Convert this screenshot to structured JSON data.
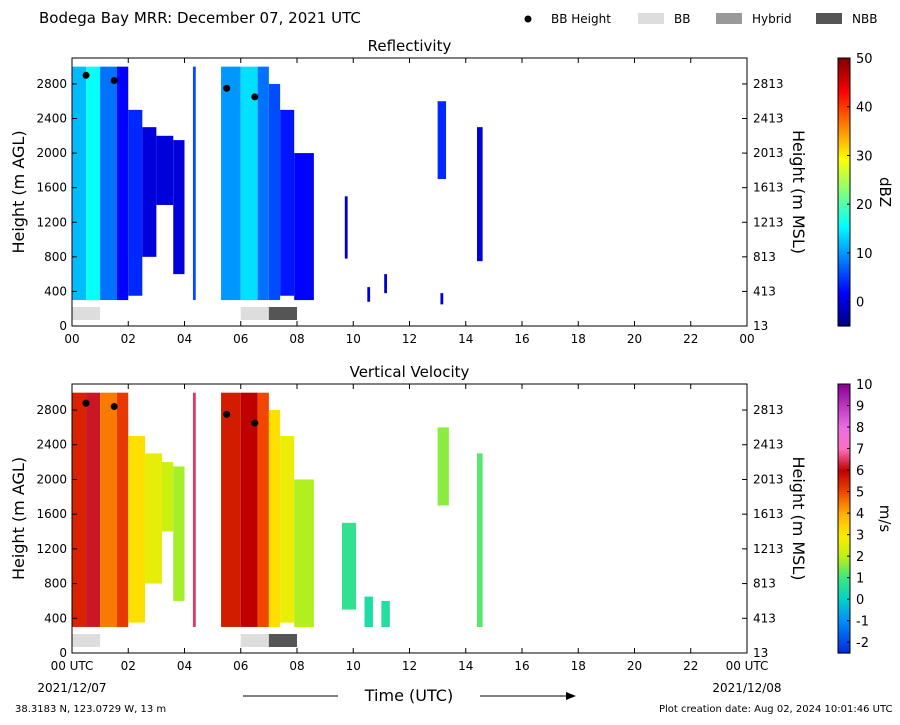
{
  "header": {
    "title": "Bodega Bay MRR:  December 07, 2021 UTC",
    "legend": [
      {
        "label": "BB Height",
        "kind": "dot",
        "color": "#000000"
      },
      {
        "label": "BB",
        "kind": "box",
        "color": "#dddddd"
      },
      {
        "label": "Hybrid",
        "kind": "box",
        "color": "#999999"
      },
      {
        "label": "NBB",
        "kind": "box",
        "color": "#555555"
      }
    ]
  },
  "footer": {
    "location": "38.3183 N, 123.0729 W, 13 m",
    "creation": "Plot creation date: Aug 02, 2024 10:01:46 UTC"
  },
  "axis": {
    "x_label": "Time (UTC)",
    "x_ticks": [
      "00",
      "02",
      "04",
      "06",
      "08",
      "10",
      "12",
      "14",
      "16",
      "18",
      "20",
      "22",
      "00"
    ],
    "x_ticks_bottom": [
      "00 UTC",
      "02",
      "04",
      "06",
      "08",
      "10",
      "12",
      "14",
      "16",
      "18",
      "20",
      "22",
      "00 UTC"
    ],
    "date_start": "2021/12/07",
    "date_end": "2021/12/08",
    "y_label_left": "Height (m AGL)",
    "y_label_right": "Height (m MSL)",
    "y_ticks_left": [
      "0",
      "400",
      "800",
      "1200",
      "1600",
      "2000",
      "2400",
      "2800"
    ],
    "y_ticks_right": [
      "13",
      "413",
      "813",
      "1213",
      "1613",
      "2013",
      "2413",
      "2813"
    ]
  },
  "chart_data": [
    {
      "type": "heatmap",
      "title": "Reflectivity",
      "xlim": [
        0,
        24
      ],
      "ylim": [
        0,
        3100
      ],
      "colorbar": {
        "label": "dBZ",
        "range": [
          -5,
          50
        ],
        "ticks": [
          "0",
          "10",
          "20",
          "30",
          "40",
          "50"
        ]
      },
      "bright_band_heights": [
        {
          "x": 0.5,
          "y": 2900
        },
        {
          "x": 1.5,
          "y": 2840
        },
        {
          "x": 5.5,
          "y": 2750
        },
        {
          "x": 6.5,
          "y": 2650
        }
      ],
      "echo_segments": [
        {
          "x": [
            0.0,
            0.5
          ],
          "y": [
            300,
            3000
          ],
          "value": 12
        },
        {
          "x": [
            0.5,
            1.0
          ],
          "y": [
            300,
            3000
          ],
          "value": 16
        },
        {
          "x": [
            1.0,
            1.6
          ],
          "y": [
            300,
            3000
          ],
          "value": 8
        },
        {
          "x": [
            1.6,
            2.0
          ],
          "y": [
            300,
            3000
          ],
          "value": 2
        },
        {
          "x": [
            2.0,
            2.5
          ],
          "y": [
            350,
            2500
          ],
          "value": 4
        },
        {
          "x": [
            2.5,
            3.0
          ],
          "y": [
            800,
            2300
          ],
          "value": 0
        },
        {
          "x": [
            3.0,
            3.6
          ],
          "y": [
            1400,
            2200
          ],
          "value": 0
        },
        {
          "x": [
            3.6,
            4.0
          ],
          "y": [
            600,
            2150
          ],
          "value": 0
        },
        {
          "x": [
            4.3,
            4.4
          ],
          "y": [
            300,
            3000
          ],
          "value": 6
        },
        {
          "x": [
            5.3,
            6.0
          ],
          "y": [
            300,
            3000
          ],
          "value": 10
        },
        {
          "x": [
            6.0,
            6.6
          ],
          "y": [
            300,
            3000
          ],
          "value": 14
        },
        {
          "x": [
            6.6,
            7.0
          ],
          "y": [
            300,
            3000
          ],
          "value": 8
        },
        {
          "x": [
            7.0,
            7.4
          ],
          "y": [
            300,
            2800
          ],
          "value": 6
        },
        {
          "x": [
            7.4,
            7.9
          ],
          "y": [
            350,
            2500
          ],
          "value": 3
        },
        {
          "x": [
            7.9,
            8.6
          ],
          "y": [
            300,
            2000
          ],
          "value": 2
        },
        {
          "x": [
            9.7,
            9.8
          ],
          "y": [
            780,
            1500
          ],
          "value": -1
        },
        {
          "x": [
            10.5,
            10.6
          ],
          "y": [
            280,
            450
          ],
          "value": 0
        },
        {
          "x": [
            11.1,
            11.2
          ],
          "y": [
            380,
            600
          ],
          "value": 0
        },
        {
          "x": [
            13.0,
            13.3
          ],
          "y": [
            1700,
            2600
          ],
          "value": 4
        },
        {
          "x": [
            13.1,
            13.2
          ],
          "y": [
            250,
            380
          ],
          "value": 0
        },
        {
          "x": [
            14.4,
            14.6
          ],
          "y": [
            750,
            2300
          ],
          "value": 0
        }
      ],
      "precip_type": [
        {
          "x": [
            0.0,
            1.0
          ],
          "type": "BB"
        },
        {
          "x": [
            6.0,
            7.0
          ],
          "type": "BB"
        },
        {
          "x": [
            7.0,
            8.0
          ],
          "type": "NBB"
        }
      ]
    },
    {
      "type": "heatmap",
      "title": "Vertical Velocity",
      "xlim": [
        0,
        24
      ],
      "ylim": [
        0,
        3100
      ],
      "colorbar": {
        "label": "m/s",
        "range": [
          -2.5,
          10
        ],
        "ticks": [
          "-2",
          "-1",
          "0",
          "1",
          "2",
          "3",
          "4",
          "5",
          "6",
          "7",
          "8",
          "9",
          "10"
        ]
      },
      "bright_band_heights": [
        {
          "x": 0.5,
          "y": 2880
        },
        {
          "x": 1.5,
          "y": 2840
        },
        {
          "x": 5.5,
          "y": 2750
        },
        {
          "x": 6.5,
          "y": 2650
        }
      ],
      "echo_segments": [
        {
          "x": [
            0.0,
            0.5
          ],
          "y": [
            300,
            3000
          ],
          "value": 5.5
        },
        {
          "x": [
            0.5,
            1.0
          ],
          "y": [
            300,
            3000
          ],
          "value": 6.2
        },
        {
          "x": [
            1.0,
            1.6
          ],
          "y": [
            300,
            3000
          ],
          "value": 4.5
        },
        {
          "x": [
            1.6,
            2.0
          ],
          "y": [
            300,
            3000
          ],
          "value": 5.2
        },
        {
          "x": [
            2.0,
            2.6
          ],
          "y": [
            350,
            2500
          ],
          "value": 3.2
        },
        {
          "x": [
            2.6,
            3.2
          ],
          "y": [
            800,
            2300
          ],
          "value": 2.6
        },
        {
          "x": [
            3.2,
            3.6
          ],
          "y": [
            1400,
            2200
          ],
          "value": 2.2
        },
        {
          "x": [
            3.6,
            4.0
          ],
          "y": [
            600,
            2150
          ],
          "value": 1.8
        },
        {
          "x": [
            4.3,
            4.4
          ],
          "y": [
            300,
            3000
          ],
          "value": 6.5
        },
        {
          "x": [
            5.3,
            6.0
          ],
          "y": [
            300,
            3000
          ],
          "value": 5.6
        },
        {
          "x": [
            6.0,
            6.6
          ],
          "y": [
            300,
            3000
          ],
          "value": 6.0
        },
        {
          "x": [
            6.6,
            7.0
          ],
          "y": [
            300,
            3000
          ],
          "value": 5.0
        },
        {
          "x": [
            7.0,
            7.4
          ],
          "y": [
            300,
            2800
          ],
          "value": 3.2
        },
        {
          "x": [
            7.4,
            7.9
          ],
          "y": [
            350,
            2500
          ],
          "value": 2.7
        },
        {
          "x": [
            7.9,
            8.6
          ],
          "y": [
            300,
            2000
          ],
          "value": 1.9
        },
        {
          "x": [
            9.6,
            10.1
          ],
          "y": [
            500,
            1500
          ],
          "value": 0.8
        },
        {
          "x": [
            10.4,
            10.7
          ],
          "y": [
            300,
            650
          ],
          "value": 0.5
        },
        {
          "x": [
            11.0,
            11.3
          ],
          "y": [
            300,
            600
          ],
          "value": 0.6
        },
        {
          "x": [
            13.0,
            13.4
          ],
          "y": [
            1700,
            2600
          ],
          "value": 1.6
        },
        {
          "x": [
            14.4,
            14.6
          ],
          "y": [
            300,
            2300
          ],
          "value": 1.2
        }
      ],
      "precip_type": [
        {
          "x": [
            0.0,
            1.0
          ],
          "type": "BB"
        },
        {
          "x": [
            6.0,
            7.0
          ],
          "type": "BB"
        },
        {
          "x": [
            7.0,
            8.0
          ],
          "type": "NBB"
        }
      ]
    }
  ]
}
